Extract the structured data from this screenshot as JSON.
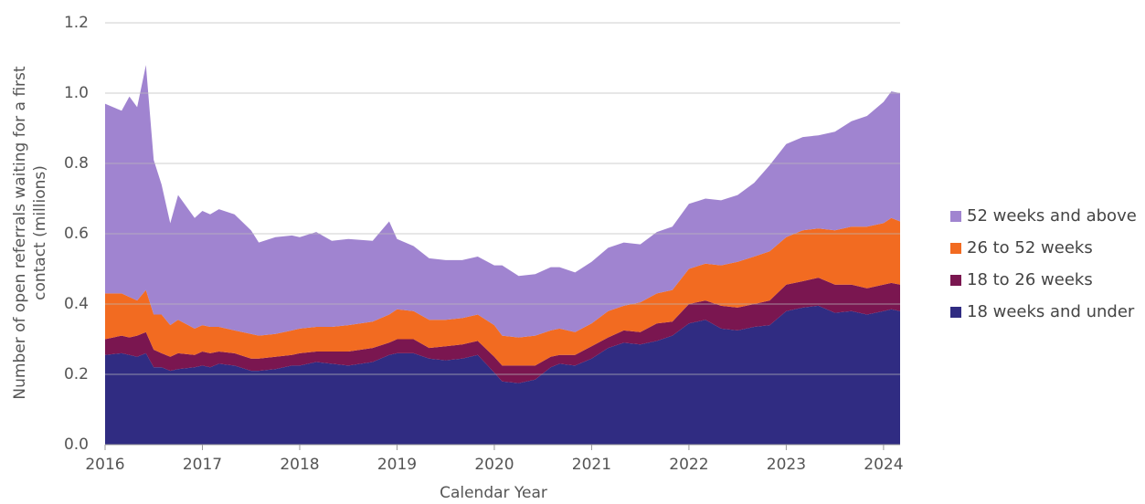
{
  "chart_data": {
    "type": "stacked_area",
    "x_label": "Calendar Year",
    "y_label": [
      "Number of open referrals waiting for a first",
      "contact (millions)"
    ],
    "x": [
      2016.0,
      2016.17,
      2016.25,
      2016.33,
      2016.42,
      2016.5,
      2016.58,
      2016.67,
      2016.75,
      2016.92,
      2017.0,
      2017.08,
      2017.17,
      2017.33,
      2017.5,
      2017.58,
      2017.75,
      2017.92,
      2018.0,
      2018.17,
      2018.33,
      2018.5,
      2018.75,
      2018.92,
      2019.0,
      2019.17,
      2019.33,
      2019.5,
      2019.67,
      2019.83,
      2020.0,
      2020.08,
      2020.25,
      2020.42,
      2020.58,
      2020.67,
      2020.83,
      2021.0,
      2021.17,
      2021.33,
      2021.5,
      2021.67,
      2021.83,
      2022.0,
      2022.17,
      2022.33,
      2022.5,
      2022.67,
      2022.83,
      2023.0,
      2023.17,
      2023.33,
      2023.5,
      2023.67,
      2023.83,
      2024.0,
      2024.08,
      2024.17
    ],
    "series": [
      {
        "name": "52 weeks and above",
        "color": "#a084d0",
        "values": [
          0.54,
          0.52,
          0.57,
          0.55,
          0.64,
          0.44,
          0.37,
          0.29,
          0.355,
          0.315,
          0.325,
          0.32,
          0.335,
          0.33,
          0.295,
          0.265,
          0.275,
          0.27,
          0.26,
          0.27,
          0.245,
          0.245,
          0.23,
          0.265,
          0.2,
          0.185,
          0.175,
          0.17,
          0.165,
          0.165,
          0.17,
          0.2,
          0.175,
          0.175,
          0.18,
          0.175,
          0.17,
          0.175,
          0.18,
          0.18,
          0.165,
          0.175,
          0.18,
          0.185,
          0.185,
          0.185,
          0.19,
          0.21,
          0.245,
          0.265,
          0.265,
          0.265,
          0.28,
          0.3,
          0.315,
          0.345,
          0.36,
          0.365
        ]
      },
      {
        "name": "26 to 52 weeks",
        "color": "#f26b21",
        "values": [
          0.13,
          0.12,
          0.115,
          0.1,
          0.12,
          0.1,
          0.11,
          0.09,
          0.095,
          0.075,
          0.075,
          0.075,
          0.07,
          0.065,
          0.07,
          0.065,
          0.065,
          0.07,
          0.07,
          0.07,
          0.07,
          0.075,
          0.075,
          0.08,
          0.085,
          0.08,
          0.08,
          0.075,
          0.075,
          0.075,
          0.09,
          0.085,
          0.08,
          0.085,
          0.075,
          0.075,
          0.065,
          0.065,
          0.075,
          0.07,
          0.085,
          0.085,
          0.09,
          0.1,
          0.105,
          0.115,
          0.13,
          0.135,
          0.14,
          0.135,
          0.145,
          0.14,
          0.155,
          0.165,
          0.175,
          0.175,
          0.185,
          0.18
        ]
      },
      {
        "name": "18 to 26 weeks",
        "color": "#7a1650",
        "values": [
          0.045,
          0.05,
          0.05,
          0.06,
          0.06,
          0.05,
          0.04,
          0.04,
          0.045,
          0.035,
          0.04,
          0.04,
          0.035,
          0.035,
          0.035,
          0.035,
          0.035,
          0.03,
          0.035,
          0.03,
          0.035,
          0.04,
          0.04,
          0.035,
          0.04,
          0.04,
          0.03,
          0.04,
          0.04,
          0.04,
          0.045,
          0.045,
          0.05,
          0.04,
          0.03,
          0.025,
          0.03,
          0.035,
          0.03,
          0.035,
          0.035,
          0.05,
          0.04,
          0.055,
          0.055,
          0.065,
          0.065,
          0.065,
          0.07,
          0.075,
          0.075,
          0.08,
          0.08,
          0.075,
          0.075,
          0.075,
          0.075,
          0.075
        ]
      },
      {
        "name": "18 weeks and under",
        "color": "#302c82",
        "values": [
          0.255,
          0.26,
          0.255,
          0.25,
          0.26,
          0.22,
          0.22,
          0.21,
          0.215,
          0.22,
          0.225,
          0.22,
          0.23,
          0.225,
          0.21,
          0.21,
          0.215,
          0.225,
          0.225,
          0.235,
          0.23,
          0.225,
          0.235,
          0.255,
          0.26,
          0.26,
          0.245,
          0.24,
          0.245,
          0.255,
          0.205,
          0.18,
          0.175,
          0.185,
          0.22,
          0.23,
          0.225,
          0.245,
          0.275,
          0.29,
          0.285,
          0.295,
          0.31,
          0.345,
          0.355,
          0.33,
          0.325,
          0.335,
          0.34,
          0.38,
          0.39,
          0.395,
          0.375,
          0.38,
          0.37,
          0.38,
          0.385,
          0.38
        ]
      }
    ],
    "xlim": [
      2016,
      2024.17
    ],
    "xticks": [
      2016,
      2017,
      2018,
      2019,
      2020,
      2021,
      2022,
      2023,
      2024
    ],
    "ylim": [
      0,
      1.2
    ],
    "yticks": [
      {
        "value": 0,
        "label": "0.0"
      },
      0.2,
      0.4,
      0.6,
      0.8,
      {
        "value": 1,
        "label": "1.0"
      },
      1.2
    ],
    "grid": true,
    "legend": "right"
  }
}
